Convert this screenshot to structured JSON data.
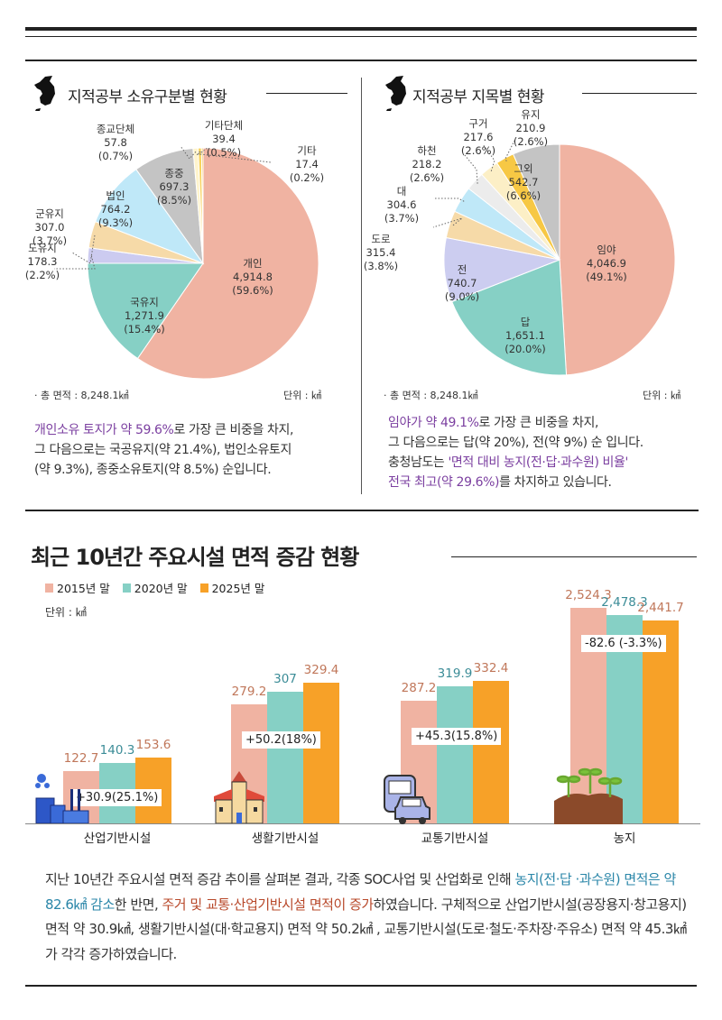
{
  "left_panel": {
    "title": "지적공부 소유구분별 현황",
    "total": "· 총 면적 : 8,248.1㎢",
    "unit": "단위 : ㎢",
    "desc": {
      "hl1": "개인소유 토지가 약 59.6%",
      "t1": "로 가장 큰 비중을 차지,",
      "t2": "그 다음으로는 국공유지(약 21.4%), 법인소유토지",
      "t3": "(약 9.3%), 종중소유토지(약 8.5%) 순입니다."
    }
  },
  "right_panel": {
    "title": "지적공부 지목별 현황",
    "total": "· 총 면적 : 8,248.1㎢",
    "unit": "단위 : ㎢",
    "desc": {
      "hl1": "임야가 약 49.1%",
      "t1": "로 가장 큰 비중을 차지,",
      "t2": "그 다음으로는 답(약 20%), 전(약 9%) 순 입니다.",
      "t3": "충청남도는 ",
      "hl2": "'면적 대비 농지(전·답·과수원) 비율'",
      "hl3": "전국 최고(약 29.6%)",
      "t4": "를 차지하고 있습니다."
    }
  },
  "chart_data": [
    {
      "type": "pie",
      "title": "지적공부 소유구분별 현황",
      "unit": "㎢",
      "slices": [
        {
          "label": "개인",
          "value": 4914.8,
          "pct": "59.6%",
          "value_text": "4,914.8",
          "color": "#f0b3a2"
        },
        {
          "label": "국유지",
          "value": 1271.9,
          "pct": "15.4%",
          "value_text": "1,271.9",
          "color": "#86d0c5"
        },
        {
          "label": "도유지",
          "value": 178.3,
          "pct": "2.2%",
          "value_text": "178.3",
          "color": "#cccbf0"
        },
        {
          "label": "군유지",
          "value": 307.0,
          "pct": "3.7%",
          "value_text": "307.0",
          "color": "#f6daa8"
        },
        {
          "label": "법인",
          "value": 764.2,
          "pct": "9.3%",
          "value_text": "764.2",
          "color": "#bfe8f8"
        },
        {
          "label": "종중",
          "value": 697.3,
          "pct": "8.5%",
          "value_text": "697.3",
          "color": "#c4c4c4"
        },
        {
          "label": "종교단체",
          "value": 57.8,
          "pct": "0.7%",
          "value_text": "57.8",
          "color": "#fff4cc"
        },
        {
          "label": "기타단체",
          "value": 39.4,
          "pct": "0.5%",
          "value_text": "39.4",
          "color": "#f8d35e"
        },
        {
          "label": "기타",
          "value": 17.4,
          "pct": "0.2%",
          "value_text": "17.4",
          "color": "#f3bf3e"
        }
      ]
    },
    {
      "type": "pie",
      "title": "지적공부 지목별 현황",
      "unit": "㎢",
      "slices": [
        {
          "label": "임야",
          "value": 4046.9,
          "pct": "49.1%",
          "value_text": "4,046.9",
          "color": "#f0b3a2"
        },
        {
          "label": "답",
          "value": 1651.1,
          "pct": "20.0%",
          "value_text": "1,651.1",
          "color": "#86d0c5"
        },
        {
          "label": "전",
          "value": 740.7,
          "pct": "9.0%",
          "value_text": "740.7",
          "color": "#cccdf0"
        },
        {
          "label": "도로",
          "value": 315.4,
          "pct": "3.8%",
          "value_text": "315.4",
          "color": "#f6daa8"
        },
        {
          "label": "대",
          "value": 304.6,
          "pct": "3.7%",
          "value_text": "304.6",
          "color": "#bfe8f8"
        },
        {
          "label": "하천",
          "value": 218.2,
          "pct": "2.6%",
          "value_text": "218.2",
          "color": "#ececec"
        },
        {
          "label": "구거",
          "value": 217.6,
          "pct": "2.6%",
          "value_text": "217.6",
          "color": "#fcefc6"
        },
        {
          "label": "유지",
          "value": 210.9,
          "pct": "2.6%",
          "value_text": "210.9",
          "color": "#f7c844"
        },
        {
          "label": "그외",
          "value": 542.7,
          "pct": "6.6%",
          "value_text": "542.7",
          "color": "#c4c4c4"
        }
      ]
    },
    {
      "type": "bar",
      "title": "최근 10년간 주요시설  면적 증감 현황",
      "unit": "단위 : ㎢",
      "categories": [
        "산업기반시설",
        "생활기반시설",
        "교통기반시설",
        "농지"
      ],
      "series": [
        {
          "name": "2015년 말",
          "values": [
            122.7,
            279.2,
            287.2,
            2524.3
          ],
          "labels": [
            "122.7",
            "279.2",
            "287.2",
            "2,524.3"
          ],
          "color": "#f0b3a2",
          "label_color": "#c0775a"
        },
        {
          "name": "2020년 말",
          "values": [
            140.3,
            307,
            319.9,
            2478.3
          ],
          "labels": [
            "140.3",
            "307",
            "319.9",
            "2,478.3"
          ],
          "color": "#86d0c5",
          "label_color": "#3b8c97"
        },
        {
          "name": "2025년 말",
          "values": [
            153.6,
            329.4,
            332.4,
            2441.7
          ],
          "labels": [
            "153.6",
            "329.4",
            "332.4",
            "2,441.7"
          ],
          "color": "#f7a128",
          "label_color": "#c0775a"
        }
      ],
      "changes": [
        "+30.9(25.1%)",
        "+50.2(18%)",
        "+45.3(15.8%)",
        "-82.6 (-3.3%)"
      ],
      "icons": [
        "factory-icon",
        "school-icon",
        "bus-car-icon",
        "sprout-icon"
      ]
    }
  ],
  "bottom_text": {
    "t1": "지난 10년간 주요시설 면적 증감 추이를 살펴본 결과, 각종 SOC사업 및 산업화로 인해 ",
    "hl1": "농지(전·답 ·과수원) 면적은 약 82.6㎢ 감소",
    "t2": "한 반면, ",
    "hl2": "주거 및 교통·산업기반시설 면적이 증가",
    "t3": "하였습니다. 구체적으로 산업기반시설(공장용지·창고용지) 면적 약 30.9㎢, 생활기반시설(대·학교용지) 면적 약 50.2㎢ , 교통기반시설(도로·철도·주차장·주유소) 면적 약 45.3㎢가 각각 증가하였습니다."
  }
}
